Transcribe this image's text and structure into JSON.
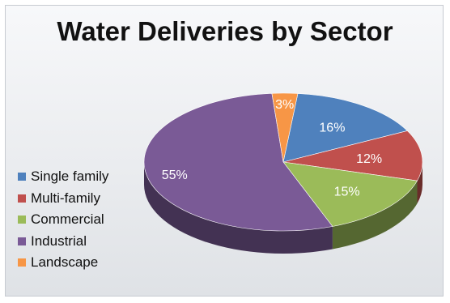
{
  "chart_data": {
    "type": "pie",
    "title": "Water Deliveries by Sector",
    "legend_position": "left",
    "three_d": true,
    "slices": [
      {
        "name": "Single family",
        "value": 16,
        "label": "16%",
        "color": "#4f81bd"
      },
      {
        "name": "Multi-family",
        "value": 12,
        "label": "12%",
        "color": "#c0504d"
      },
      {
        "name": "Commercial",
        "value": 15,
        "label": "15%",
        "color": "#9bbb59"
      },
      {
        "name": "Industrial",
        "value": 55,
        "label": "55%",
        "color": "#7a5a96"
      },
      {
        "name": "Landscape",
        "value": 3,
        "label": "3%",
        "color": "#f79646"
      }
    ]
  }
}
